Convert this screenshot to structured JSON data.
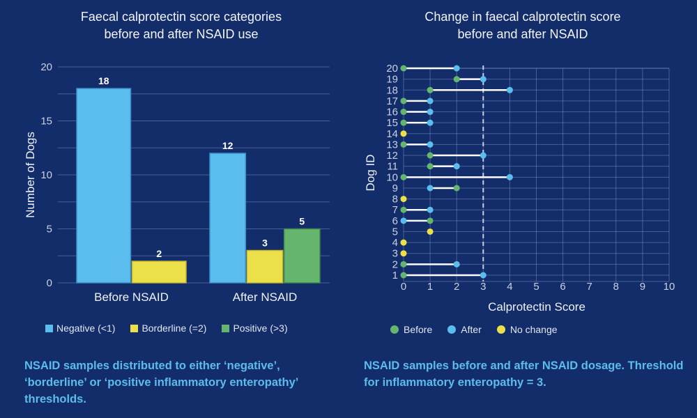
{
  "colors": {
    "background": "#132d6a",
    "negative": "#5bbdee",
    "borderline": "#ebe04a",
    "positive": "#66b56e",
    "before": "#66b56e",
    "after": "#5bbdee",
    "no_change": "#ebe04a",
    "caption": "#5cbcec"
  },
  "chart_data": [
    {
      "type": "bar",
      "title": "Faecal calprotectin score categories\nbefore and after NSAID use",
      "xlabel": "",
      "ylabel": "Number of Dogs",
      "ylim": [
        0,
        20
      ],
      "yticks": [
        0,
        5,
        10,
        15,
        20
      ],
      "grid_step": 2.5,
      "grid": true,
      "categories": [
        "Before NSAID",
        "After NSAID"
      ],
      "series": [
        {
          "name": "Negative (<1)",
          "key": "negative",
          "values": [
            18,
            12
          ]
        },
        {
          "name": "Borderline (=2)",
          "key": "borderline",
          "values": [
            2,
            3
          ]
        },
        {
          "name": "Positive (>3)",
          "key": "positive",
          "values": [
            0,
            5
          ]
        }
      ],
      "legend_position": "bottom",
      "caption": "NSAID samples distributed to either ‘negative’, ‘borderline’ or ‘positive inflammatory enteropathy’ thresholds."
    },
    {
      "type": "dumbbell",
      "title": "Change in faecal calprotectin score\nbefore and after NSAID",
      "xlabel": "Calprotectin Score",
      "ylabel": "Dog ID",
      "xlim": [
        0,
        10
      ],
      "xticks": [
        0,
        1,
        2,
        3,
        4,
        5,
        6,
        7,
        8,
        9,
        10
      ],
      "ylim": [
        1,
        20
      ],
      "grid": true,
      "threshold": 3,
      "threshold_style": "dashed",
      "legend": [
        "Before",
        "After",
        "No change"
      ],
      "legend_position": "bottom",
      "points": [
        {
          "dog": 1,
          "before": 0,
          "after": 3
        },
        {
          "dog": 2,
          "before": 0,
          "after": 2
        },
        {
          "dog": 3,
          "before": 0,
          "after": 0
        },
        {
          "dog": 4,
          "before": 0,
          "after": 0
        },
        {
          "dog": 5,
          "before": 1,
          "after": 1
        },
        {
          "dog": 6,
          "before": 1,
          "after": 0
        },
        {
          "dog": 7,
          "before": 0,
          "after": 1
        },
        {
          "dog": 8,
          "before": 0,
          "after": 0
        },
        {
          "dog": 9,
          "before": 2,
          "after": 1
        },
        {
          "dog": 10,
          "before": 0,
          "after": 4
        },
        {
          "dog": 11,
          "before": 1,
          "after": 2
        },
        {
          "dog": 12,
          "before": 1,
          "after": 3
        },
        {
          "dog": 13,
          "before": 0,
          "after": 1
        },
        {
          "dog": 14,
          "before": 0,
          "after": 0
        },
        {
          "dog": 15,
          "before": 0,
          "after": 1
        },
        {
          "dog": 16,
          "before": 0,
          "after": 1
        },
        {
          "dog": 17,
          "before": 0,
          "after": 1
        },
        {
          "dog": 18,
          "before": 1,
          "after": 4
        },
        {
          "dog": 19,
          "before": 2,
          "after": 3
        },
        {
          "dog": 20,
          "before": 0,
          "after": 2
        }
      ],
      "caption": "NSAID samples before and after NSAID dosage. Threshold for inflammatory enteropathy = 3."
    }
  ]
}
